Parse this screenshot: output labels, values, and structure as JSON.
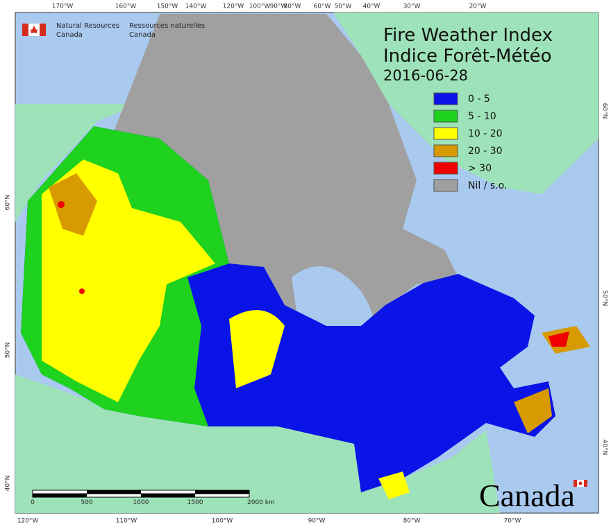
{
  "header": {
    "logo_en": [
      "Natural Resources",
      "Canada"
    ],
    "logo_fr": [
      "Ressources naturelles",
      "Canada"
    ]
  },
  "title": {
    "line1": "Fire Weather Index",
    "line2": "Indice Forêt-Météo",
    "date": "2016-06-28"
  },
  "legend": [
    {
      "label": "0 - 5",
      "color": "#0a14e6"
    },
    {
      "label": "5 - 10",
      "color": "#1ed21e"
    },
    {
      "label": "10 - 20",
      "color": "#ffff00"
    },
    {
      "label": "20 - 30",
      "color": "#d79a00"
    },
    {
      "label": "> 30",
      "color": "#f00000"
    },
    {
      "label": "Nil / s.o.",
      "color": "#a0a0a0"
    }
  ],
  "graticule": {
    "top": [
      "170°W",
      "160°W",
      "150°W",
      "140°W",
      "120°W",
      "100°W",
      "90°W",
      "80°W",
      "60°W",
      "50°W",
      "40°W",
      "30°W",
      "20°W"
    ],
    "bottom": [
      "120°W",
      "110°W",
      "100°W",
      "90°W",
      "80°W",
      "70°W"
    ],
    "left": [
      "60°N",
      "50°N",
      "40°N"
    ],
    "right": [
      "60°N",
      "50°N",
      "40°N"
    ]
  },
  "scale_bar": {
    "labels": [
      "0",
      "500",
      "1000",
      "1500",
      "2000 km"
    ]
  },
  "wordmark": "Canada"
}
